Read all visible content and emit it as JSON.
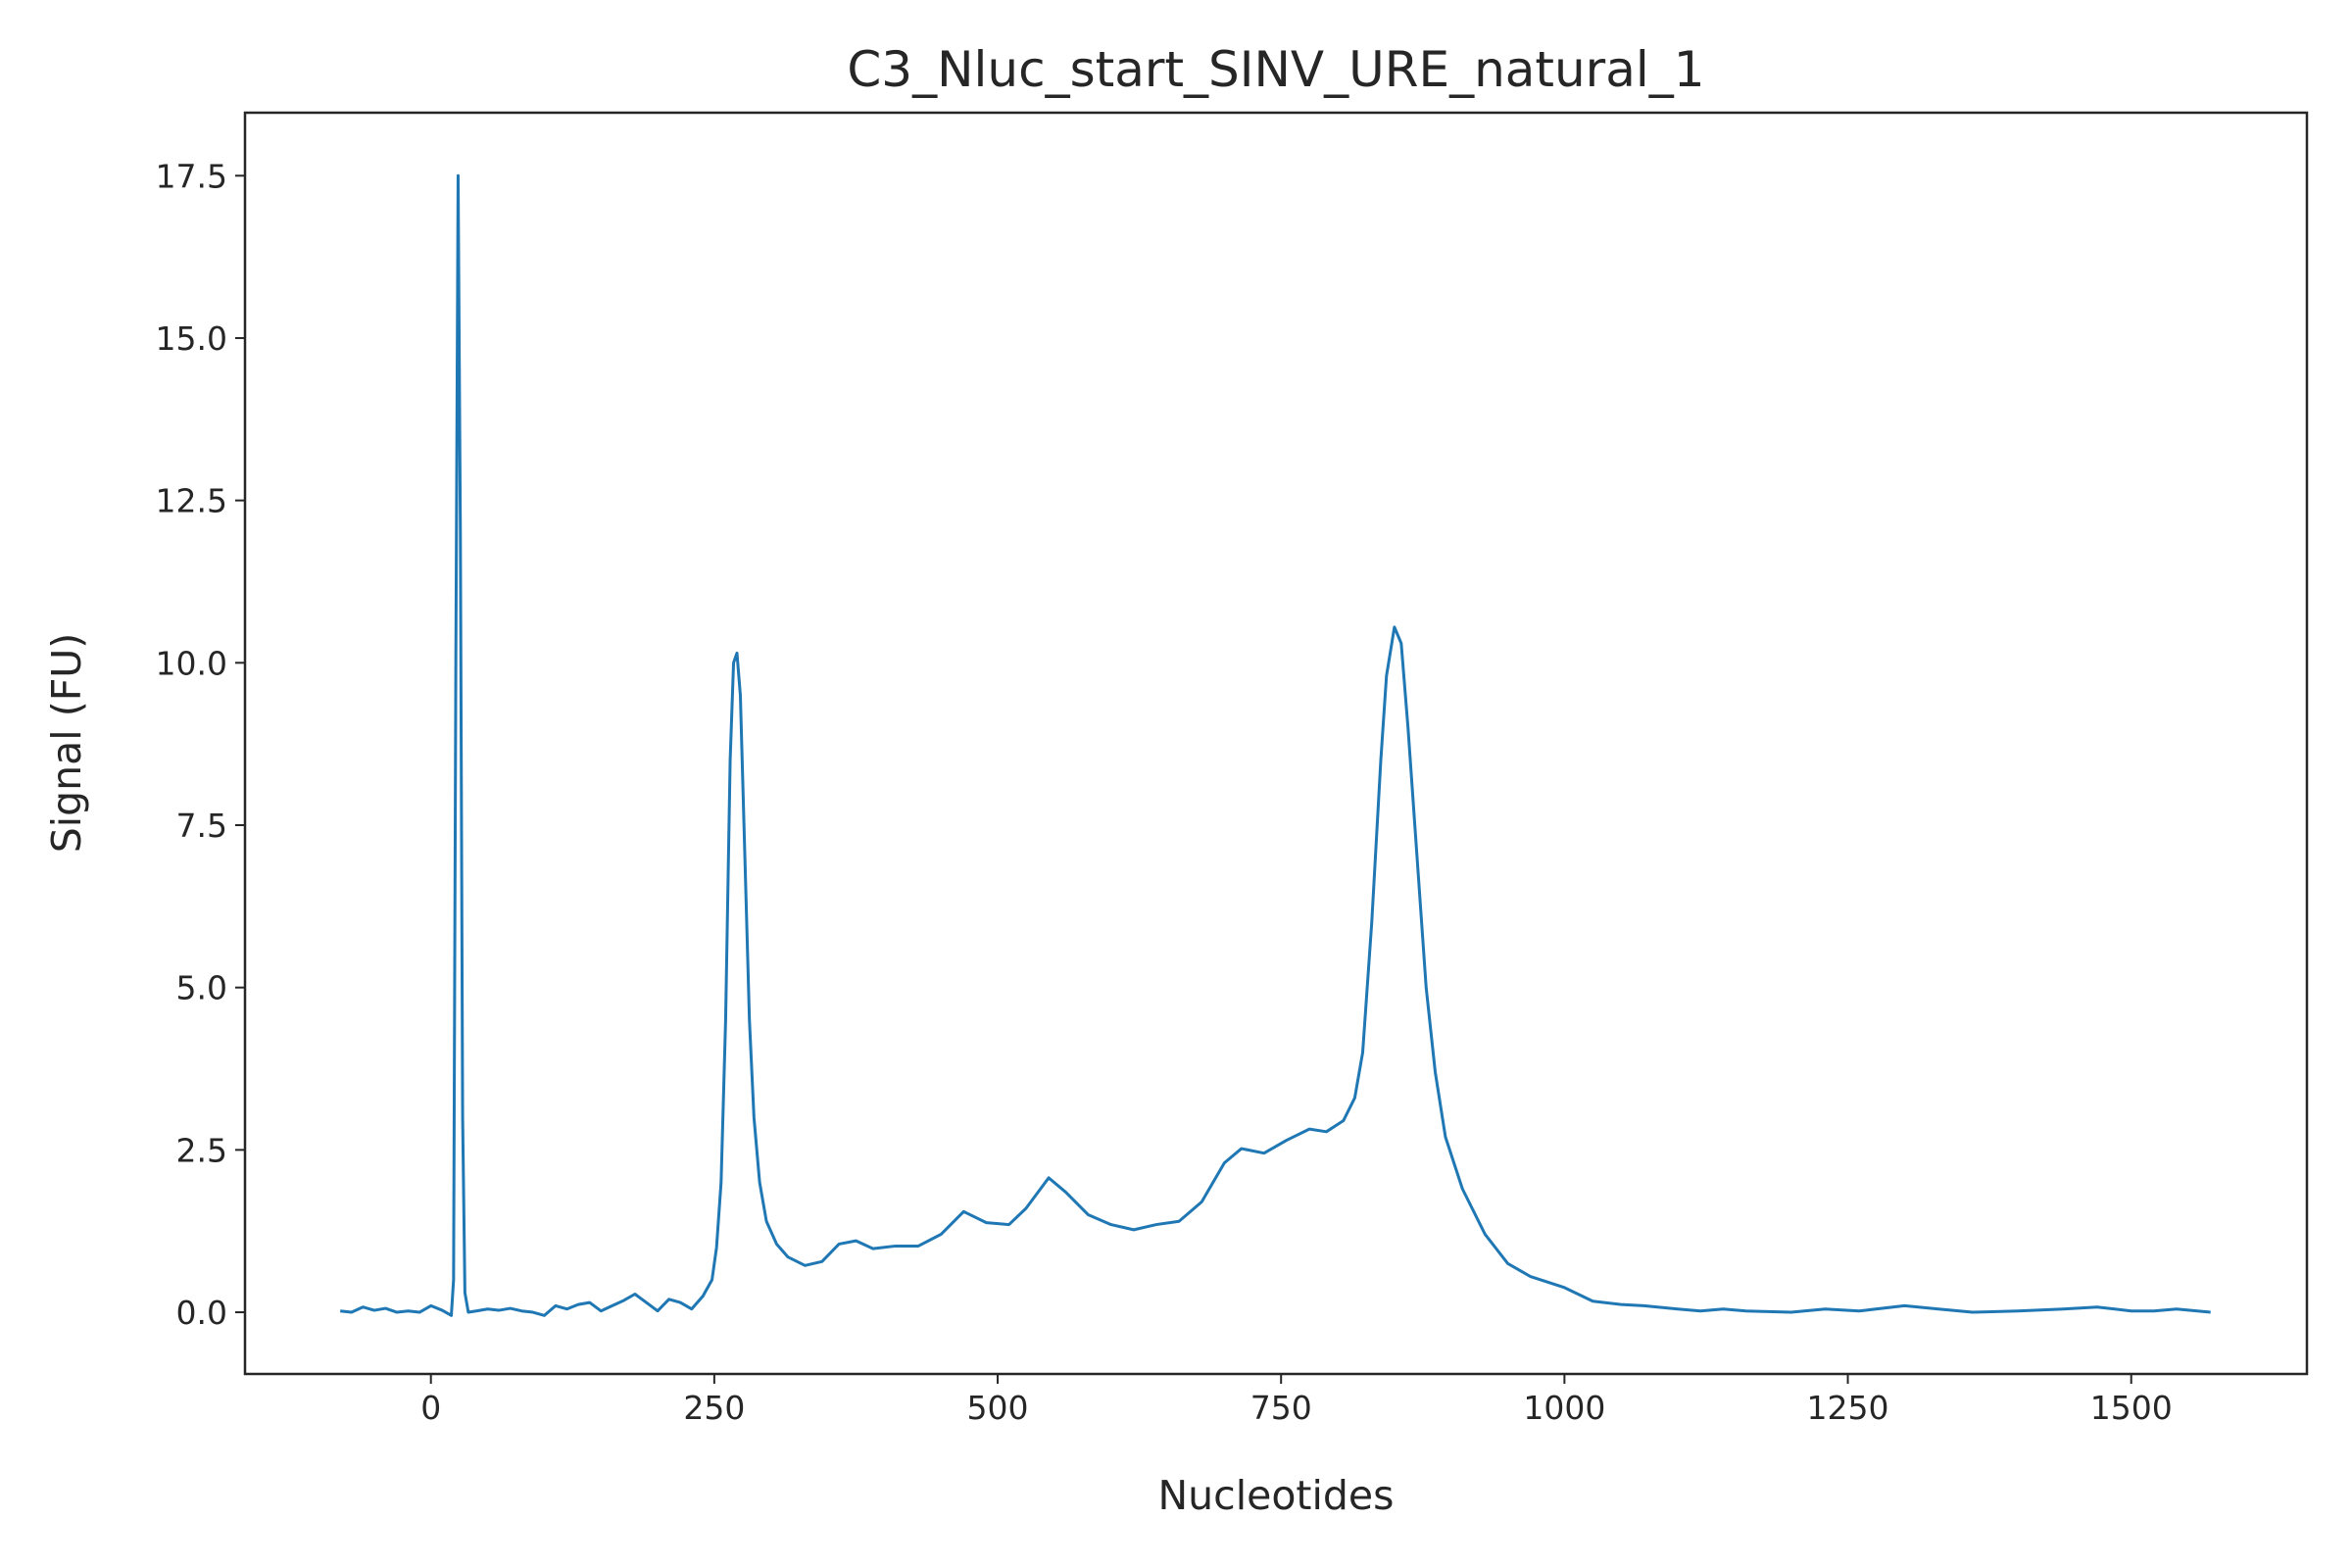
{
  "chart_data": {
    "type": "line",
    "title": "C3_Nluc_start_SINV_URE_natural_1",
    "x_label": "Nucleotides",
    "y_label": "Signal (FU)",
    "xlim": [
      -164,
      1655
    ],
    "ylim": [
      -0.95,
      18.47
    ],
    "xticks": [
      0,
      250,
      500,
      750,
      1000,
      1250,
      1500
    ],
    "yticks": [
      {
        "value": 0,
        "label": "0.0"
      },
      {
        "value": 2.5,
        "label": "2.5"
      },
      {
        "value": 5,
        "label": "5.0"
      },
      {
        "value": 7.5,
        "label": "7.5"
      },
      {
        "value": 10,
        "label": "10.0"
      },
      {
        "value": 12.5,
        "label": "12.5"
      },
      {
        "value": 15,
        "label": "15.0"
      },
      {
        "value": 17.5,
        "label": "17.5"
      }
    ],
    "grid": false,
    "series": [
      {
        "color": "#1f77b4",
        "x": [
          -80,
          -70,
          -60,
          -50,
          -40,
          -30,
          -20,
          -10,
          0,
          10,
          18,
          20,
          22,
          24,
          26,
          28,
          30,
          33,
          40,
          50,
          60,
          70,
          80,
          90,
          100,
          110,
          120,
          130,
          140,
          150,
          160,
          170,
          180,
          190,
          200,
          210,
          220,
          230,
          240,
          248,
          252,
          256,
          260,
          264,
          267,
          270,
          273,
          277,
          281,
          285,
          290,
          296,
          305,
          315,
          330,
          345,
          360,
          375,
          390,
          410,
          430,
          450,
          470,
          490,
          510,
          525,
          545,
          560,
          580,
          600,
          620,
          640,
          660,
          680,
          700,
          715,
          735,
          755,
          775,
          790,
          805,
          815,
          822,
          830,
          838,
          843,
          850,
          856,
          862,
          870,
          878,
          886,
          895,
          910,
          930,
          950,
          970,
          1000,
          1025,
          1050,
          1070,
          1100,
          1120,
          1140,
          1160,
          1200,
          1230,
          1260,
          1300,
          1330,
          1360,
          1400,
          1440,
          1470,
          1500,
          1520,
          1540,
          1570
        ],
        "values": [
          0.02,
          0.0,
          0.08,
          0.03,
          0.06,
          0.0,
          0.02,
          0.0,
          0.1,
          0.03,
          -0.05,
          0.5,
          10,
          17.5,
          12,
          3,
          0.3,
          0.0,
          0.02,
          0.05,
          0.03,
          0.06,
          0.02,
          0.0,
          -0.05,
          0.1,
          0.05,
          0.12,
          0.15,
          0.02,
          0.1,
          0.18,
          0.28,
          0.15,
          0.02,
          0.2,
          0.15,
          0.05,
          0.25,
          0.5,
          1.0,
          2.0,
          4.5,
          8.5,
          10.0,
          10.15,
          9.5,
          7.0,
          4.5,
          3.0,
          2.0,
          1.4,
          1.05,
          0.85,
          0.72,
          0.78,
          1.05,
          1.1,
          0.98,
          1.02,
          1.02,
          1.2,
          1.55,
          1.38,
          1.35,
          1.6,
          2.07,
          1.85,
          1.5,
          1.35,
          1.27,
          1.35,
          1.4,
          1.7,
          2.3,
          2.52,
          2.45,
          2.65,
          2.82,
          2.78,
          2.95,
          3.3,
          4.0,
          6.0,
          8.5,
          9.8,
          10.55,
          10.3,
          9.0,
          7.0,
          5.0,
          3.7,
          2.7,
          1.9,
          1.2,
          0.75,
          0.55,
          0.38,
          0.17,
          0.12,
          0.1,
          0.05,
          0.02,
          0.05,
          0.02,
          0.0,
          0.05,
          0.02,
          0.1,
          0.05,
          0.0,
          0.02,
          0.05,
          0.08,
          0.02,
          0.02,
          0.05,
          0.0
        ]
      }
    ]
  }
}
